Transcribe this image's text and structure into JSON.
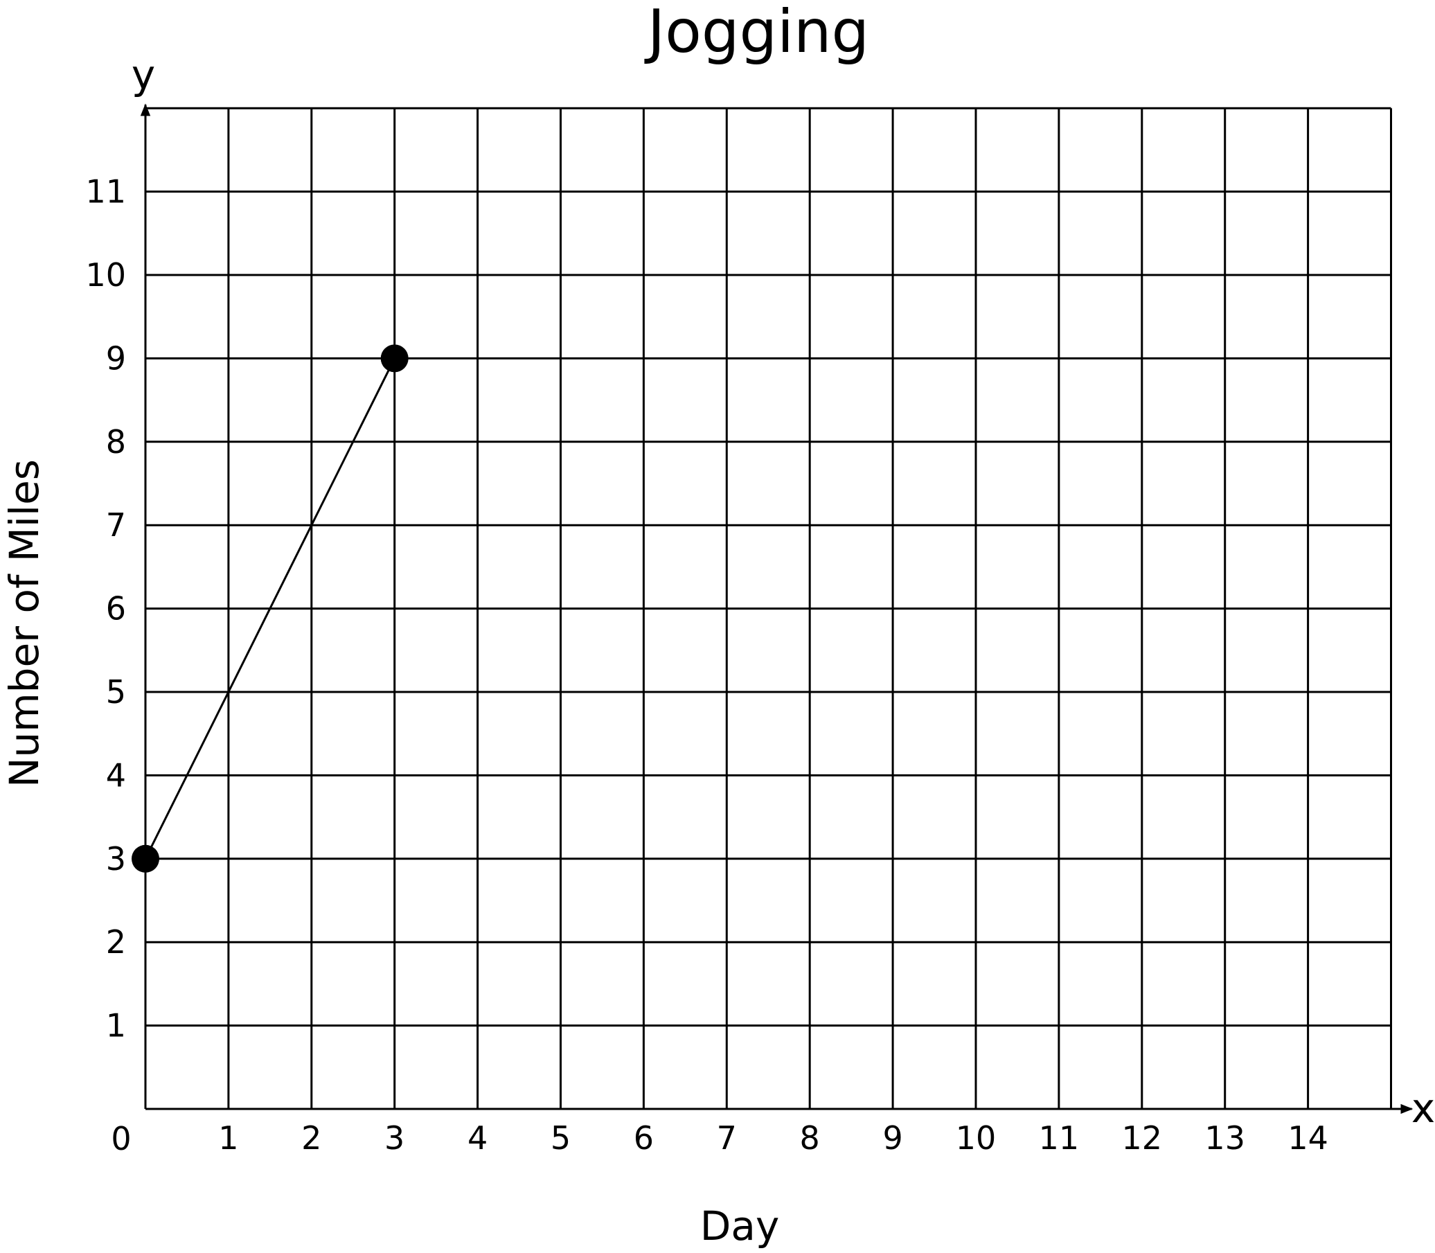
{
  "chart_data": {
    "type": "line",
    "title": "Jogging",
    "xlabel": "Day",
    "ylabel": "Number of Miles",
    "x_axis_letter": "x",
    "y_axis_letter": "y",
    "origin_label": "0",
    "xlim": [
      0,
      15
    ],
    "ylim": [
      0,
      12
    ],
    "x_ticks": [
      "1",
      "2",
      "3",
      "4",
      "5",
      "6",
      "7",
      "8",
      "9",
      "10",
      "11",
      "12",
      "13",
      "14"
    ],
    "y_ticks": [
      "1",
      "2",
      "3",
      "4",
      "5",
      "6",
      "7",
      "8",
      "9",
      "10",
      "11"
    ],
    "grid": true,
    "series": [
      {
        "x": [
          0,
          3
        ],
        "y": [
          3,
          9
        ],
        "color": "#000000",
        "markers": "filled-circle"
      }
    ]
  }
}
